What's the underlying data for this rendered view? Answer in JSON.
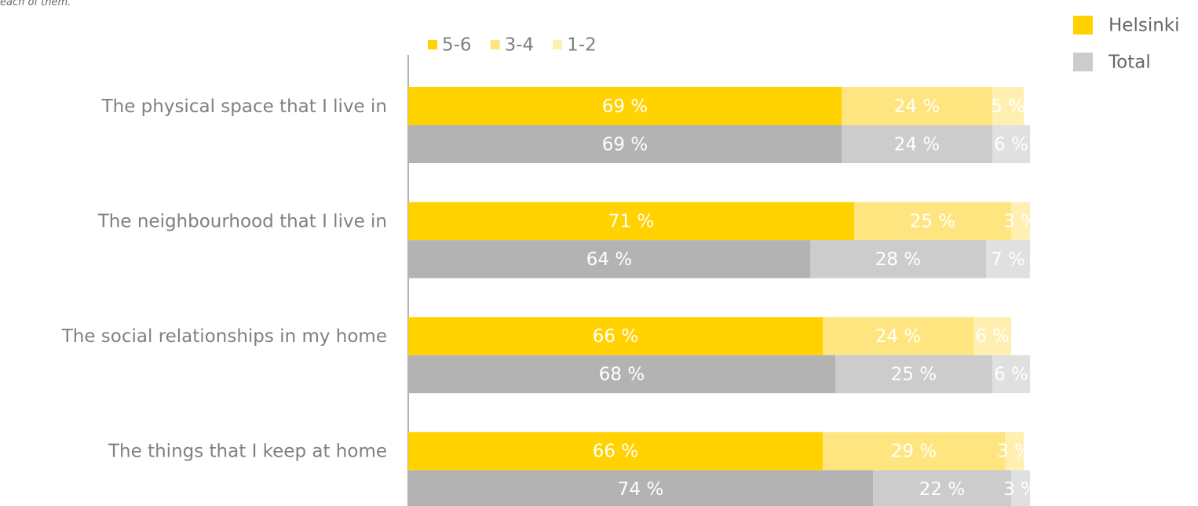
{
  "chart_data": {
    "type": "grouped-stacked-bar",
    "subtitle": "each of them.",
    "categories": [
      "The physical space that I live in",
      "The neighbourhood that I live in",
      "The social relationships in my home",
      "The things that I keep at home"
    ],
    "stack_names": [
      "5-6",
      "3-4",
      "1-2"
    ],
    "xlim": [
      0,
      100
    ],
    "groups": [
      {
        "name": "Helsinki",
        "colors": [
          "#FFD200",
          "#FFE57F",
          "#FFF0B2"
        ],
        "values": [
          [
            69,
            71,
            66,
            66
          ],
          [
            24,
            25,
            24,
            29
          ],
          [
            5,
            3,
            6,
            3
          ]
        ],
        "value_labels": [
          [
            "69 %",
            "71 %",
            "66 %",
            "66 %"
          ],
          [
            "24 %",
            "25 %",
            "24 %",
            "29 %"
          ],
          [
            "5 %",
            "3 %",
            "6 %",
            "3 %"
          ]
        ]
      },
      {
        "name": "Total",
        "colors": [
          "#B3B3B3",
          "#CCCCCC",
          "#E0E0E0"
        ],
        "values": [
          [
            69,
            64,
            68,
            74
          ],
          [
            24,
            28,
            25,
            22
          ],
          [
            6,
            7,
            6,
            3
          ]
        ],
        "value_labels": [
          [
            "69 %",
            "64 %",
            "68 %",
            "74 %"
          ],
          [
            "24 %",
            "28 %",
            "25 %",
            "22 %"
          ],
          [
            "6 %",
            "7 %",
            "6 %",
            "3 %"
          ]
        ]
      }
    ]
  }
}
